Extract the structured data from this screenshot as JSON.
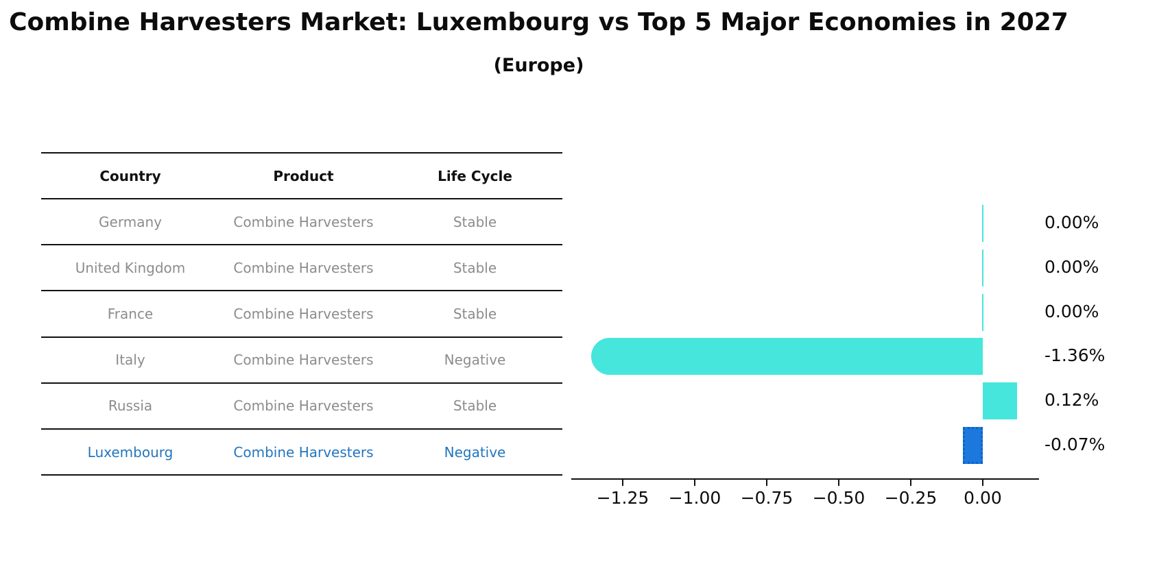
{
  "header": {
    "title": "Combine Harvesters Market: Luxembourg vs Top 5 Major Economies in 2027",
    "subtitle": "(Europe)"
  },
  "table": {
    "columns": [
      "Country",
      "Product",
      "Life Cycle"
    ],
    "rows": [
      {
        "country": "Germany",
        "product": "Combine Harvesters",
        "life_cycle": "Stable",
        "highlighted": false
      },
      {
        "country": "United Kingdom",
        "product": "Combine Harvesters",
        "life_cycle": "Stable",
        "highlighted": false
      },
      {
        "country": "France",
        "product": "Combine Harvesters",
        "life_cycle": "Stable",
        "highlighted": false
      },
      {
        "country": "Italy",
        "product": "Combine Harvesters",
        "life_cycle": "Negative",
        "highlighted": false
      },
      {
        "country": "Russia",
        "product": "Combine Harvesters",
        "life_cycle": "Stable",
        "highlighted": false
      },
      {
        "country": "Luxembourg",
        "product": "Combine Harvesters",
        "life_cycle": "Negative",
        "highlighted": true
      }
    ],
    "highlight_color": "#2376be",
    "text_color": "#8c8c8c"
  },
  "chart_data": {
    "type": "bar",
    "orientation": "horizontal",
    "title": "Combine Harvesters Market: Luxembourg vs Top 5 Major Economies in 2027",
    "subtitle": "(Europe)",
    "categories": [
      "Germany",
      "United Kingdom",
      "France",
      "Italy",
      "Russia",
      "Luxembourg"
    ],
    "values": [
      0.0,
      0.0,
      0.0,
      -1.36,
      0.12,
      -0.07
    ],
    "value_labels": [
      "0.00%",
      "0.00%",
      "0.00%",
      "-1.36%",
      "0.12%",
      "-0.07%"
    ],
    "unit": "%",
    "xlim": [
      -1.43,
      0.195
    ],
    "x_ticks": [
      -1.25,
      -1.0,
      -0.75,
      -0.5,
      -0.25,
      0.0
    ],
    "x_tick_labels": [
      "−1.25",
      "−1.00",
      "−0.75",
      "−0.50",
      "−0.25",
      "0.00"
    ],
    "grid": false,
    "legend": false,
    "highlight_category": "Luxembourg",
    "colors": {
      "default_bar": "#46e6dc",
      "highlight_bar": "#1c78dc",
      "axis": "#111111",
      "label_text": "#0c0c0c"
    },
    "bar_colors": [
      "#46e6dc",
      "#46e6dc",
      "#46e6dc",
      "#46e6dc",
      "#46e6dc",
      "#1c78dc"
    ]
  }
}
